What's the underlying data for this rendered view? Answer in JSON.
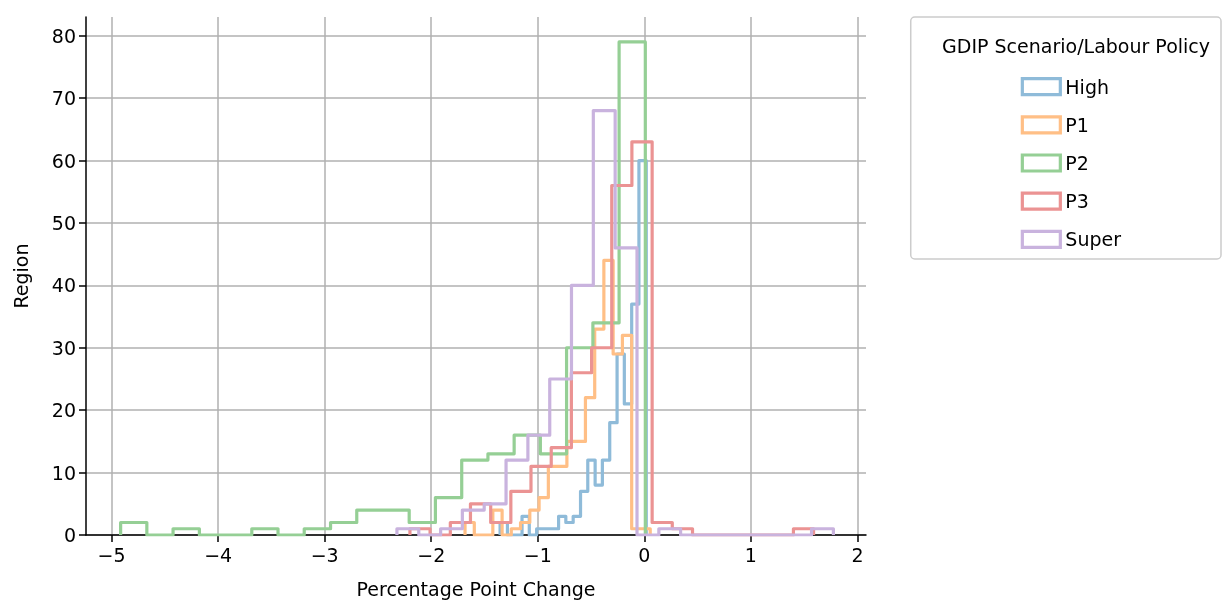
{
  "chart_data": {
    "type": "step",
    "xlabel": "Percentage Point Change",
    "ylabel": "Region",
    "legend_title": "GDIP Scenario/Labour Policy",
    "legend": "top right",
    "grid": true,
    "line_style": "solid",
    "xlim": [
      -5.24,
      2.08
    ],
    "xticks": [
      -5,
      -4,
      -3,
      -2,
      -1,
      0,
      1,
      2
    ],
    "ylim": [
      0,
      83
    ],
    "yticks": [
      0,
      10,
      20,
      30,
      40,
      50,
      60,
      70,
      80
    ],
    "series": [
      {
        "name": "High",
        "color": "#8fbbd9",
        "x": [
          -1.354,
          -1.354,
          -1.285,
          -1.217,
          -1.148,
          -1.08,
          -1.011,
          -0.942,
          -0.874,
          -0.805,
          -0.737,
          -0.668,
          -0.599,
          -0.531,
          -0.462,
          -0.394,
          -0.325,
          -0.256,
          -0.188,
          -0.119,
          -0.051,
          0.018
        ],
        "values": [
          0,
          2,
          0,
          0,
          3,
          0,
          1,
          1,
          1,
          3,
          2,
          3,
          7,
          12,
          8,
          12,
          18,
          29,
          21,
          37,
          60,
          0
        ]
      },
      {
        "name": "P1",
        "color": "#ffbf86",
        "x": [
          -1.683,
          -1.683,
          -1.596,
          -1.509,
          -1.422,
          -1.335,
          -1.249,
          -1.162,
          -1.075,
          -0.988,
          -0.901,
          -0.814,
          -0.727,
          -0.64,
          -0.553,
          -0.466,
          -0.38,
          -0.293,
          -0.206,
          -0.119,
          -0.032,
          0.055
        ],
        "values": [
          0,
          2,
          0,
          0,
          4,
          0,
          1,
          2,
          4,
          6,
          11,
          11,
          15,
          15,
          22,
          33,
          44,
          29,
          32,
          1,
          1,
          0
        ]
      },
      {
        "name": "P2",
        "color": "#95cf95",
        "x": [
          -4.915,
          -4.915,
          -4.669,
          -4.423,
          -4.176,
          -3.93,
          -3.684,
          -3.438,
          -3.192,
          -2.945,
          -2.699,
          -2.453,
          -2.207,
          -1.961,
          -1.714,
          -1.468,
          -1.222,
          -0.976,
          -0.73,
          -0.483,
          -0.237,
          0.009
        ],
        "values": [
          0,
          2,
          0,
          1,
          0,
          0,
          1,
          0,
          1,
          2,
          4,
          4,
          2,
          6,
          12,
          13,
          16,
          13,
          30,
          34,
          79,
          0
        ]
      },
      {
        "name": "P3",
        "color": "#eb9393",
        "x": [
          -2.2,
          -2.2,
          -2.011,
          -1.821,
          -1.632,
          -1.442,
          -1.253,
          -1.064,
          -0.874,
          -0.685,
          -0.495,
          -0.306,
          -0.117,
          0.073,
          0.262,
          0.452,
          0.641,
          0.83,
          1.02,
          1.209,
          1.399,
          1.588
        ],
        "values": [
          0,
          1,
          0,
          2,
          5,
          2,
          7,
          11,
          14,
          26,
          30,
          56,
          63,
          2,
          1,
          0,
          0,
          0,
          0,
          0,
          1,
          0
        ]
      },
      {
        "name": "Super",
        "color": "#c9b3de",
        "x": [
          -2.322,
          -2.322,
          -2.117,
          -1.912,
          -1.708,
          -1.503,
          -1.298,
          -1.093,
          -0.888,
          -0.684,
          -0.479,
          -0.274,
          -0.069,
          0.136,
          0.34,
          0.545,
          0.75,
          0.955,
          1.16,
          1.364,
          1.569,
          1.774
        ],
        "values": [
          0,
          1,
          0,
          1,
          4,
          5,
          12,
          16,
          25,
          40,
          68,
          46,
          0,
          1,
          0,
          0,
          0,
          0,
          0,
          0,
          1,
          0
        ]
      }
    ]
  }
}
